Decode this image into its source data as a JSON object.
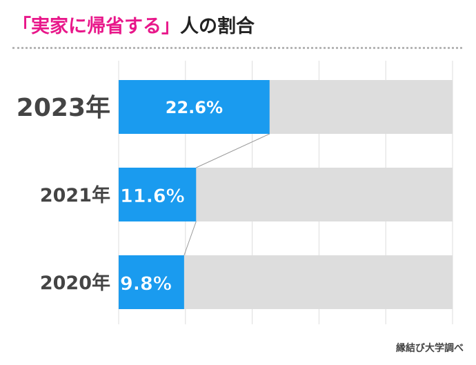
{
  "title": {
    "highlight": "「実家に帰省する」",
    "rest": "人の割合"
  },
  "credit": "縁結び大学調べ",
  "colors": {
    "bar": "#1a9bef",
    "track": "#dddddd",
    "accent": "#e8178a",
    "grid": "#dddddd",
    "label": "#444444"
  },
  "chart_data": {
    "type": "bar",
    "orientation": "horizontal",
    "title": "「実家に帰省する」人の割合",
    "categories": [
      "2023年",
      "2021年",
      "2020年"
    ],
    "values": [
      22.6,
      11.6,
      9.8
    ],
    "value_labels": [
      "22.6%",
      "11.6%",
      "9.8%"
    ],
    "xlim": [
      0,
      50
    ],
    "unit": "%",
    "grid": true,
    "connector_lines": true
  }
}
